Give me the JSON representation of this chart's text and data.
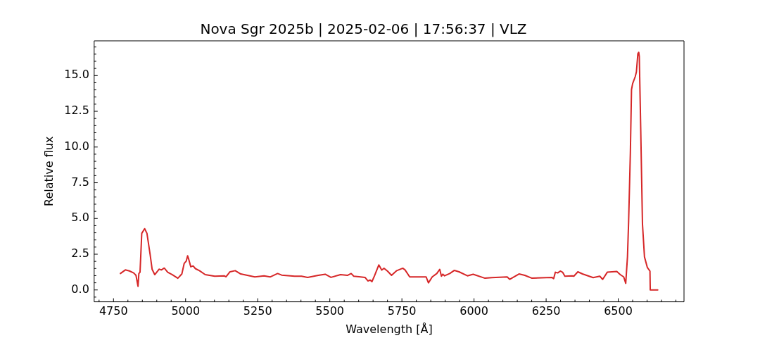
{
  "chart_data": {
    "type": "line",
    "title": "Nova Sgr 2025b | 2025-02-06 | 17:56:37 | VLZ",
    "xlabel": "Wavelength [Å]",
    "ylabel": "Relative flux",
    "x": [
      4774,
      4791,
      4805,
      4820,
      4828,
      4835,
      4838,
      4842,
      4848,
      4858,
      4866,
      4877,
      4884,
      4893,
      4908,
      4916,
      4926,
      4938,
      4954,
      4973,
      4987,
      4995,
      5002,
      5007,
      5010,
      5018,
      5026,
      5034,
      5048,
      5068,
      5101,
      5134,
      5140,
      5154,
      5172,
      5191,
      5240,
      5272,
      5293,
      5319,
      5333,
      5378,
      5402,
      5423,
      5460,
      5484,
      5504,
      5537,
      5561,
      5574,
      5583,
      5622,
      5632,
      5640,
      5646,
      5655,
      5670,
      5680,
      5688,
      5700,
      5714,
      5732,
      5753,
      5761,
      5777,
      5834,
      5842,
      5855,
      5871,
      5881,
      5887,
      5892,
      5898,
      5916,
      5932,
      5948,
      5977,
      5997,
      6038,
      6062,
      6115,
      6124,
      6156,
      6176,
      6201,
      6270,
      6276,
      6282,
      6290,
      6299,
      6307,
      6315,
      6340,
      6346,
      6360,
      6376,
      6413,
      6436,
      6446,
      6462,
      6495,
      6507,
      6519,
      6526,
      6532,
      6536,
      6542,
      6546,
      6550,
      6559,
      6563,
      6568,
      6571,
      6573,
      6578,
      6584,
      6591,
      6601,
      6610,
      6611,
      6637
    ],
    "values": [
      1.15,
      1.4,
      1.33,
      1.19,
      1.02,
      0.25,
      1.15,
      1.24,
      3.96,
      4.29,
      3.96,
      2.48,
      1.44,
      1.07,
      1.45,
      1.4,
      1.53,
      1.24,
      1.07,
      0.82,
      1.12,
      1.85,
      2.01,
      2.39,
      2.2,
      1.62,
      1.68,
      1.49,
      1.35,
      1.07,
      0.96,
      0.99,
      0.92,
      1.27,
      1.35,
      1.12,
      0.91,
      0.99,
      0.91,
      1.15,
      1.04,
      0.96,
      0.96,
      0.88,
      1.02,
      1.1,
      0.88,
      1.07,
      1.02,
      1.15,
      0.96,
      0.88,
      0.63,
      0.69,
      0.58,
      0.99,
      1.75,
      1.39,
      1.52,
      1.32,
      1.02,
      1.35,
      1.52,
      1.4,
      0.91,
      0.91,
      0.5,
      0.91,
      1.15,
      1.44,
      0.96,
      1.1,
      0.99,
      1.15,
      1.37,
      1.27,
      0.99,
      1.1,
      0.82,
      0.86,
      0.91,
      0.74,
      1.12,
      1.02,
      0.82,
      0.88,
      0.79,
      1.24,
      1.19,
      1.32,
      1.24,
      0.96,
      0.99,
      0.96,
      1.27,
      1.12,
      0.86,
      0.96,
      0.74,
      1.24,
      1.29,
      1.07,
      0.91,
      0.46,
      2.31,
      4.79,
      9.57,
      14.02,
      14.44,
      14.93,
      15.26,
      16.53,
      16.63,
      16.34,
      11.22,
      4.62,
      2.31,
      1.57,
      1.32,
      0,
      0
    ],
    "color": "#d62728",
    "xlim": [
      4683,
      6728
    ],
    "xticks": [
      {
        "value": 4700,
        "label": null
      },
      4750,
      {
        "value": 4800,
        "label": null
      },
      {
        "value": 4850,
        "label": null
      },
      {
        "value": 4900,
        "label": null
      },
      {
        "value": 4950,
        "label": null
      },
      5000,
      {
        "value": 5050,
        "label": null
      },
      {
        "value": 5100,
        "label": null
      },
      {
        "value": 5150,
        "label": null
      },
      {
        "value": 5200,
        "label": null
      },
      5250,
      {
        "value": 5300,
        "label": null
      },
      {
        "value": 5350,
        "label": null
      },
      {
        "value": 5400,
        "label": null
      },
      {
        "value": 5450,
        "label": null
      },
      5500,
      {
        "value": 5550,
        "label": null
      },
      {
        "value": 5600,
        "label": null
      },
      {
        "value": 5650,
        "label": null
      },
      {
        "value": 5700,
        "label": null
      },
      5750,
      {
        "value": 5800,
        "label": null
      },
      {
        "value": 5850,
        "label": null
      },
      {
        "value": 5900,
        "label": null
      },
      {
        "value": 5950,
        "label": null
      },
      6000,
      {
        "value": 6050,
        "label": null
      },
      {
        "value": 6100,
        "label": null
      },
      {
        "value": 6150,
        "label": null
      },
      {
        "value": 6200,
        "label": null
      },
      6250,
      {
        "value": 6300,
        "label": null
      },
      {
        "value": 6350,
        "label": null
      },
      {
        "value": 6400,
        "label": null
      },
      {
        "value": 6450,
        "label": null
      },
      6500,
      {
        "value": 6550,
        "label": null
      },
      {
        "value": 6600,
        "label": null
      },
      {
        "value": 6650,
        "label": null
      },
      {
        "value": 6700,
        "label": null
      }
    ],
    "ylim": [
      -0.83,
      17.43
    ],
    "yticks": [
      {
        "value": -0.5,
        "label": null
      },
      {
        "value": 0,
        "label": "0.0"
      },
      {
        "value": 0.5,
        "label": null
      },
      {
        "value": 1,
        "label": null
      },
      {
        "value": 1.5,
        "label": null
      },
      {
        "value": 2,
        "label": null
      },
      2.5,
      {
        "value": 3,
        "label": null
      },
      {
        "value": 3.5,
        "label": null
      },
      {
        "value": 4,
        "label": null
      },
      {
        "value": 4.5,
        "label": null
      },
      {
        "value": 5,
        "label": "5.0"
      },
      {
        "value": 5.5,
        "label": null
      },
      {
        "value": 6,
        "label": null
      },
      {
        "value": 6.5,
        "label": null
      },
      {
        "value": 7,
        "label": null
      },
      7.5,
      {
        "value": 8,
        "label": null
      },
      {
        "value": 8.5,
        "label": null
      },
      {
        "value": 9,
        "label": null
      },
      {
        "value": 9.5,
        "label": null
      },
      {
        "value": 10,
        "label": "10.0"
      },
      {
        "value": 10.5,
        "label": null
      },
      {
        "value": 11,
        "label": null
      },
      {
        "value": 11.5,
        "label": null
      },
      {
        "value": 12,
        "label": null
      },
      12.5,
      {
        "value": 13,
        "label": null
      },
      {
        "value": 13.5,
        "label": null
      },
      {
        "value": 14,
        "label": null
      },
      {
        "value": 14.5,
        "label": null
      },
      {
        "value": 15,
        "label": "15.0"
      },
      {
        "value": 15.5,
        "label": null
      },
      {
        "value": 16,
        "label": null
      },
      {
        "value": 16.5,
        "label": null
      },
      {
        "value": 17,
        "label": null
      }
    ]
  }
}
